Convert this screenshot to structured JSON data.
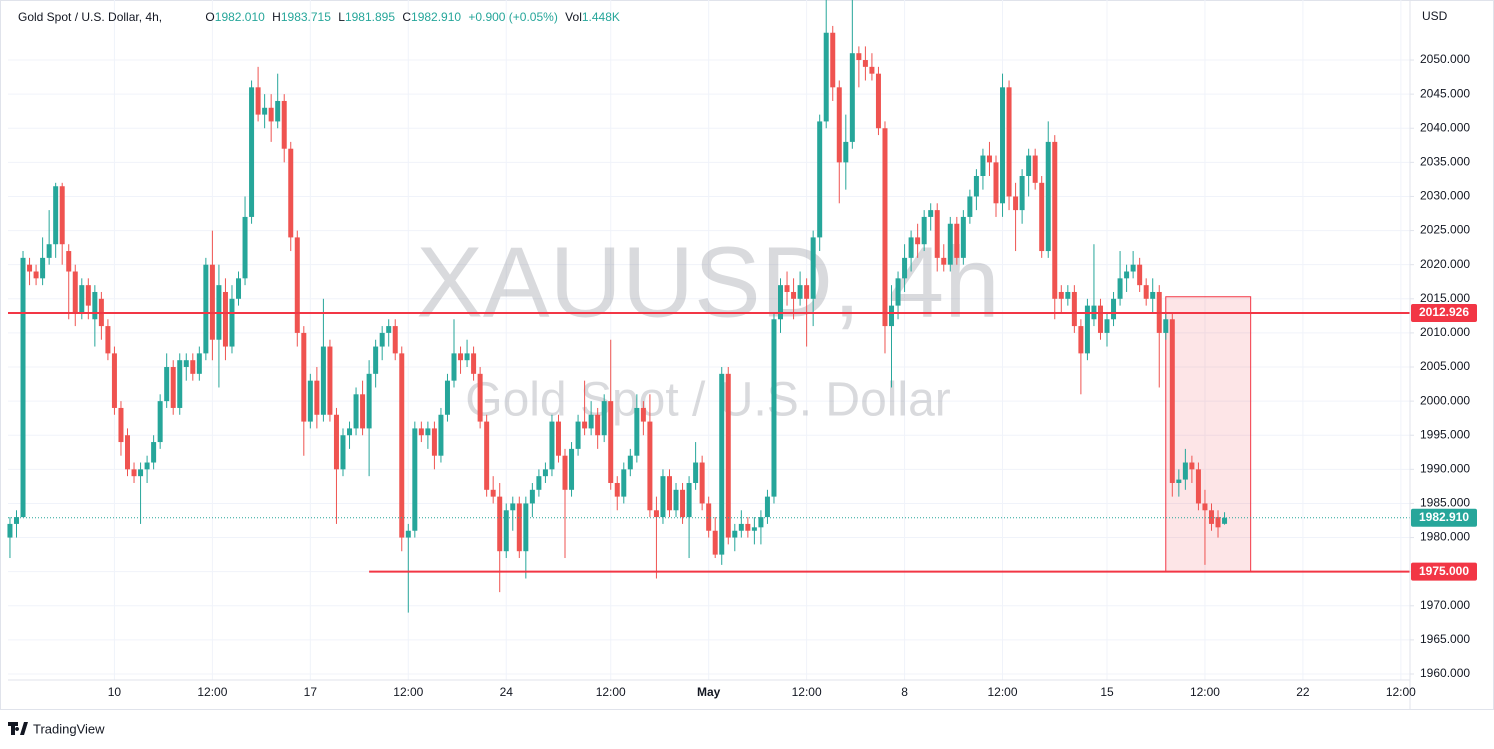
{
  "chart_data": {
    "type": "candlestick",
    "header": {
      "symbol": "Gold Spot / U.S. Dollar, 4h,",
      "open_label": "O",
      "open": "1982.010",
      "high_label": "H",
      "high": "1983.715",
      "low_label": "L",
      "low": "1981.895",
      "close_label": "C",
      "close": "1982.910",
      "change": "+0.900 (+0.05%)",
      "volume_label": "Vol",
      "volume": "1.448K"
    },
    "watermark": {
      "title": "XAUUSD, 4h",
      "subtitle": "Gold Spot / U.S. Dollar"
    },
    "y_axis_label": "USD",
    "up_color": "#26a69a",
    "down_color": "#ef5350",
    "level_color": "#f23645",
    "grid": true,
    "ylim": [
      1959.12,
      2058.8
    ],
    "yticks": [
      {
        "value": 1960,
        "label": "1960.000"
      },
      {
        "value": 1965,
        "label": "1965.000"
      },
      {
        "value": 1970,
        "label": "1970.000"
      },
      {
        "value": 1975,
        "label": "1975.000"
      },
      {
        "value": 1980,
        "label": "1980.000"
      },
      {
        "value": 1985,
        "label": "1985.000"
      },
      {
        "value": 1990,
        "label": "1990.000"
      },
      {
        "value": 1995,
        "label": "1995.000"
      },
      {
        "value": 2000,
        "label": "2000.000"
      },
      {
        "value": 2005,
        "label": "2005.000"
      },
      {
        "value": 2010,
        "label": "2010.000"
      },
      {
        "value": 2015,
        "label": "2015.000"
      },
      {
        "value": 2020,
        "label": "2020.000"
      },
      {
        "value": 2025,
        "label": "2025.000"
      },
      {
        "value": 2030,
        "label": "2030.000"
      },
      {
        "value": 2035,
        "label": "2035.000"
      },
      {
        "value": 2040,
        "label": "2040.000"
      },
      {
        "value": 2045,
        "label": "2045.000"
      },
      {
        "value": 2050,
        "label": "2050.000"
      }
    ],
    "xlim": [
      -0.3,
      214.4
    ],
    "xticks": [
      {
        "value": 16,
        "label": "10"
      },
      {
        "value": 31,
        "label": "12:00"
      },
      {
        "value": 46,
        "label": "17"
      },
      {
        "value": 61,
        "label": "12:00"
      },
      {
        "value": 76,
        "label": "24"
      },
      {
        "value": 92,
        "label": "12:00"
      },
      {
        "value": 107,
        "label": "May"
      },
      {
        "value": 122,
        "label": "12:00"
      },
      {
        "value": 137,
        "label": "8"
      },
      {
        "value": 152,
        "label": "12:00"
      },
      {
        "value": 168,
        "label": "15"
      },
      {
        "value": 183,
        "label": "12:00"
      },
      {
        "value": 198,
        "label": "22"
      },
      {
        "value": 213,
        "label": "12:00"
      }
    ],
    "levels": [
      {
        "value": 2012.926,
        "label": "2012.926",
        "start": -0.3
      },
      {
        "value": 1975,
        "label": "1975.000",
        "start": 55
      }
    ],
    "zone": {
      "start": 177,
      "end": 190,
      "top": 2015.3,
      "bottom": 1975
    },
    "last_price": {
      "value": 1982.91,
      "label": "1982.910"
    },
    "candles": [
      [
        1980,
        1983,
        1977,
        1982
      ],
      [
        1982,
        1984,
        1980,
        1983
      ],
      [
        1983,
        2022,
        1983,
        2021
      ],
      [
        2020,
        2021,
        2017,
        2019
      ],
      [
        2019,
        2020,
        2017,
        2018
      ],
      [
        2018,
        2024,
        2017,
        2021
      ],
      [
        2021,
        2028,
        2020,
        2023
      ],
      [
        2023,
        2032,
        2021,
        2031.5
      ],
      [
        2031.5,
        2032,
        2020,
        2023
      ],
      [
        2022,
        2023,
        2012,
        2019
      ],
      [
        2019,
        2020,
        2011,
        2013
      ],
      [
        2013,
        2018,
        2012,
        2017
      ],
      [
        2017,
        2018,
        2012,
        2014
      ],
      [
        2012,
        2017,
        2008,
        2016
      ],
      [
        2015,
        2016,
        2009,
        2011
      ],
      [
        2011,
        2012,
        2006,
        2007
      ],
      [
        2007,
        2008,
        1998,
        1999
      ],
      [
        1999,
        2000,
        1992,
        1994
      ],
      [
        1995,
        1996,
        1989,
        1990
      ],
      [
        1990,
        1991,
        1988,
        1989
      ],
      [
        1989,
        1991,
        1982,
        1990
      ],
      [
        1990,
        1992,
        1988,
        1991
      ],
      [
        1991,
        1995,
        1990,
        1994
      ],
      [
        1994,
        2001,
        1993,
        2000
      ],
      [
        2000,
        2007,
        1999,
        2005
      ],
      [
        2005,
        2006,
        1998,
        1999
      ],
      [
        1999,
        2007,
        1998,
        2006
      ],
      [
        2005,
        2007,
        2003,
        2006
      ],
      [
        2006,
        2007,
        2003,
        2004
      ],
      [
        2004,
        2008,
        2003,
        2007
      ],
      [
        2007,
        2021,
        2006,
        2020
      ],
      [
        2020,
        2025,
        2006,
        2009
      ],
      [
        2009,
        2020,
        2002,
        2017
      ],
      [
        2016,
        2018,
        2006,
        2008
      ],
      [
        2008,
        2017,
        2007,
        2015
      ],
      [
        2015,
        2019,
        2014,
        2018
      ],
      [
        2018,
        2030,
        2017,
        2027
      ],
      [
        2027,
        2047,
        2026,
        2046
      ],
      [
        2046,
        2049,
        2041,
        2042
      ],
      [
        2042,
        2045,
        2040,
        2043
      ],
      [
        2043,
        2045,
        2038,
        2041
      ],
      [
        2041,
        2048,
        2040,
        2044
      ],
      [
        2044,
        2045,
        2035,
        2037
      ],
      [
        2037,
        2038,
        2022,
        2024
      ],
      [
        2024,
        2025,
        2008,
        2010
      ],
      [
        2010,
        2011,
        1992,
        1997
      ],
      [
        1997,
        2004,
        1996,
        2003
      ],
      [
        2003,
        2005,
        1996,
        1998
      ],
      [
        1998,
        2015,
        1997,
        2008
      ],
      [
        2008,
        2009,
        1997,
        1998
      ],
      [
        1998,
        1999,
        1982,
        1990
      ],
      [
        1990,
        1996,
        1989,
        1995
      ],
      [
        1995,
        1997,
        1993,
        1996
      ],
      [
        1996,
        2002,
        1995,
        2001
      ],
      [
        2001,
        2003,
        1995,
        1996
      ],
      [
        1996,
        2006,
        1989,
        2004
      ],
      [
        2004,
        2009,
        2002,
        2008
      ],
      [
        2008,
        2011,
        2006,
        2010
      ],
      [
        2010,
        2012,
        2008,
        2011
      ],
      [
        2011,
        2012,
        2006,
        2007
      ],
      [
        2007,
        2008,
        1978,
        1980
      ],
      [
        1980,
        1982,
        1969,
        1981
      ],
      [
        1981,
        1997,
        1980,
        1996
      ],
      [
        1996,
        1997,
        1994,
        1995
      ],
      [
        1995,
        1997,
        1993,
        1996
      ],
      [
        1996,
        1997,
        1990,
        1992
      ],
      [
        1992,
        1999,
        1991,
        1998
      ],
      [
        1998,
        2004,
        1997,
        2003
      ],
      [
        2003,
        2012,
        2002,
        2007
      ],
      [
        2007,
        2008,
        2004,
        2006
      ],
      [
        2006,
        2009,
        2005,
        2007
      ],
      [
        2007,
        2008,
        2003,
        2004
      ],
      [
        2004,
        2005,
        1996,
        1997
      ],
      [
        1997,
        1998,
        1986,
        1987
      ],
      [
        1987,
        1989,
        1985,
        1986
      ],
      [
        1986,
        1988,
        1972,
        1978
      ],
      [
        1978,
        1985,
        1977,
        1984
      ],
      [
        1984,
        1986,
        1981,
        1985
      ],
      [
        1985,
        1986,
        1977,
        1978
      ],
      [
        1978,
        1986,
        1974,
        1985
      ],
      [
        1985,
        1988,
        1983,
        1987
      ],
      [
        1987,
        1990,
        1986,
        1989
      ],
      [
        1989,
        1991,
        1988,
        1990
      ],
      [
        1990,
        1998,
        1989,
        1997
      ],
      [
        1997,
        1998,
        1991,
        1992
      ],
      [
        1992,
        1993,
        1977,
        1987
      ],
      [
        1987,
        1994,
        1986,
        1993
      ],
      [
        1993,
        1998,
        1992,
        1997
      ],
      [
        1997,
        2003,
        1995,
        1996
      ],
      [
        1996,
        2000,
        1995,
        1998
      ],
      [
        1998,
        1999,
        1993,
        1995
      ],
      [
        1995,
        2001,
        1994,
        2000
      ],
      [
        2000,
        2009,
        1987,
        1988
      ],
      [
        1988,
        1989,
        1984,
        1986
      ],
      [
        1986,
        1991,
        1985,
        1990
      ],
      [
        1990,
        1993,
        1989,
        1992
      ],
      [
        1992,
        2001,
        1991,
        1999
      ],
      [
        1999,
        2000,
        1995,
        1997
      ],
      [
        1997,
        2001,
        1983,
        1984
      ],
      [
        1984,
        1986,
        1974,
        1983
      ],
      [
        1983,
        1990,
        1982,
        1989
      ],
      [
        1989,
        1990,
        1983,
        1984
      ],
      [
        1984,
        1988,
        1983,
        1987
      ],
      [
        1987,
        1988,
        1982,
        1983
      ],
      [
        1983,
        1989,
        1977,
        1988
      ],
      [
        1988,
        1994,
        1987,
        1991
      ],
      [
        1991,
        1992,
        1984,
        1985
      ],
      [
        1985,
        1986,
        1980,
        1981
      ],
      [
        1981,
        1983,
        1977,
        1977.5
      ],
      [
        1977.5,
        2005,
        1976,
        2004
      ],
      [
        2004,
        2005,
        1979,
        1980
      ],
      [
        1980,
        1982,
        1978,
        1981
      ],
      [
        1981,
        1984,
        1980,
        1982
      ],
      [
        1982,
        1983,
        1980,
        1981
      ],
      [
        1981,
        1983,
        1979,
        1981.5
      ],
      [
        1981.5,
        1984,
        1979,
        1983
      ],
      [
        1983,
        1987,
        1982,
        1986
      ],
      [
        1986,
        2013,
        1985,
        2012
      ],
      [
        2012,
        2018,
        2010,
        2017
      ],
      [
        2017,
        2019,
        2014,
        2016
      ],
      [
        2016,
        2018,
        2012,
        2015
      ],
      [
        2015,
        2019,
        2014,
        2017
      ],
      [
        2017,
        2018,
        2008,
        2015
      ],
      [
        2015,
        2025,
        2011,
        2024
      ],
      [
        2024,
        2042,
        2022,
        2041
      ],
      [
        2041,
        2059,
        2040,
        2054
      ],
      [
        2054,
        2055,
        2044,
        2046
      ],
      [
        2046,
        2047,
        2029,
        2035
      ],
      [
        2035,
        2042,
        2031,
        2038
      ],
      [
        2038,
        2059,
        2037,
        2051
      ],
      [
        2051,
        2052,
        2046,
        2050
      ],
      [
        2050,
        2052,
        2047,
        2049
      ],
      [
        2049,
        2051,
        2047,
        2048
      ],
      [
        2048,
        2049,
        2039,
        2040
      ],
      [
        2040,
        2041,
        2007,
        2011
      ],
      [
        2011,
        2017,
        2002,
        2014
      ],
      [
        2014,
        2019,
        2012,
        2018
      ],
      [
        2018,
        2023,
        2016,
        2021
      ],
      [
        2021,
        2025,
        2019,
        2024
      ],
      [
        2024,
        2026,
        2021,
        2023
      ],
      [
        2023,
        2028,
        2022,
        2027
      ],
      [
        2027,
        2029,
        2025,
        2028
      ],
      [
        2028,
        2029,
        2019,
        2021
      ],
      [
        2021,
        2023,
        2019,
        2020
      ],
      [
        2020,
        2027,
        2019,
        2026
      ],
      [
        2026,
        2027,
        2020,
        2021
      ],
      [
        2021,
        2028,
        2020,
        2027
      ],
      [
        2027,
        2031,
        2026,
        2030
      ],
      [
        2030,
        2034,
        2028,
        2033
      ],
      [
        2033,
        2037,
        2031,
        2036
      ],
      [
        2036,
        2038,
        2033,
        2035
      ],
      [
        2035,
        2036,
        2027,
        2029
      ],
      [
        2029,
        2048,
        2027,
        2046
      ],
      [
        2046,
        2047,
        2028,
        2030
      ],
      [
        2030,
        2032,
        2022,
        2028
      ],
      [
        2028,
        2034,
        2026,
        2033
      ],
      [
        2033,
        2037,
        2030,
        2036
      ],
      [
        2036,
        2037,
        2031,
        2032
      ],
      [
        2032,
        2033,
        2021,
        2022
      ],
      [
        2022,
        2041,
        2021,
        2038
      ],
      [
        2038,
        2039,
        2012,
        2015
      ],
      [
        2016,
        2017,
        2013,
        2015
      ],
      [
        2015,
        2017,
        2014,
        2016
      ],
      [
        2016,
        2017,
        2010,
        2011
      ],
      [
        2011,
        2012,
        2001,
        2007
      ],
      [
        2007,
        2015,
        2006,
        2014
      ],
      [
        2012,
        2023,
        2011,
        2014
      ],
      [
        2014,
        2015,
        2009,
        2010
      ],
      [
        2010,
        2013,
        2008,
        2012
      ],
      [
        2012,
        2016,
        2011,
        2015
      ],
      [
        2015,
        2022,
        2014,
        2018
      ],
      [
        2018,
        2020,
        2016,
        2019
      ],
      [
        2019,
        2022,
        2018,
        2020
      ],
      [
        2020,
        2021,
        2016,
        2017
      ],
      [
        2017,
        2018,
        2014,
        2015
      ],
      [
        2015,
        2018,
        2013,
        2016
      ],
      [
        2016,
        2017,
        2002,
        2010
      ],
      [
        2010,
        2013,
        2009,
        2012
      ],
      [
        2012,
        2013,
        1986,
        1988
      ],
      [
        1988,
        1990,
        1986,
        1988.5
      ],
      [
        1988.5,
        1993,
        1987,
        1991
      ],
      [
        1991,
        1992,
        1988,
        1990
      ],
      [
        1990,
        1991,
        1984,
        1985
      ],
      [
        1985,
        1987,
        1976,
        1984
      ],
      [
        1984,
        1985,
        1981,
        1982
      ],
      [
        1983,
        1984,
        1980,
        1981.5
      ],
      [
        1982.01,
        1983.715,
        1981.895,
        1982.91
      ]
    ],
    "footer": {
      "brand": "TradingView"
    }
  }
}
